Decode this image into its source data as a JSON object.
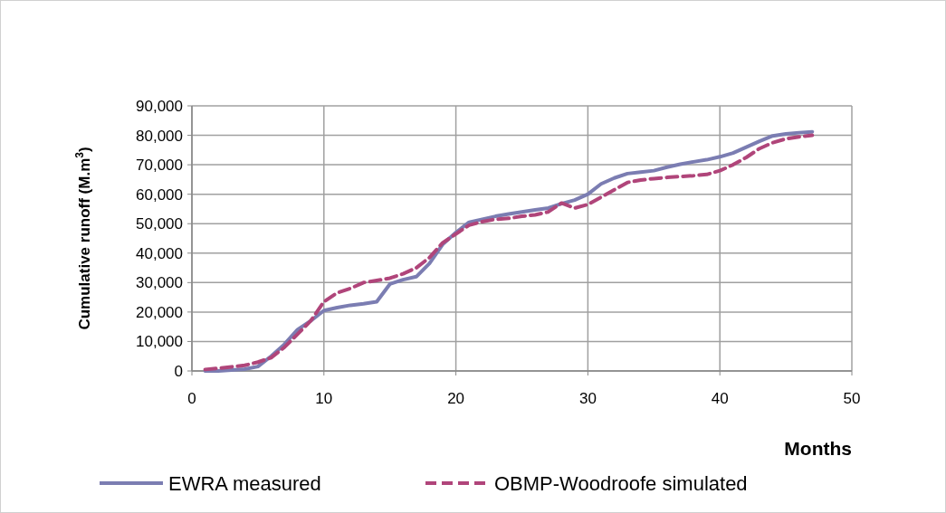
{
  "chart_data": {
    "type": "line",
    "xlabel": "Months",
    "ylabel": "Cumulative runoff (M.m$^{3}$)",
    "x": [
      1,
      2,
      3,
      4,
      5,
      6,
      7,
      8,
      9,
      10,
      11,
      12,
      13,
      14,
      15,
      16,
      17,
      18,
      19,
      20,
      21,
      22,
      23,
      24,
      25,
      26,
      27,
      28,
      29,
      30,
      31,
      32,
      33,
      34,
      35,
      36,
      37,
      38,
      39,
      40,
      41,
      42,
      43,
      44,
      45,
      46,
      47
    ],
    "series": [
      {
        "name": "EWRA measured",
        "color": "#7b7db2",
        "line_style": "solid",
        "values": [
          0,
          0,
          300,
          600,
          1500,
          5000,
          9000,
          14000,
          17000,
          20500,
          21500,
          22300,
          22800,
          23500,
          29500,
          31000,
          32000,
          36500,
          43000,
          47000,
          50500,
          51500,
          52500,
          53300,
          54000,
          54700,
          55300,
          56800,
          58000,
          60000,
          63500,
          65500,
          67000,
          67500,
          68000,
          69200,
          70200,
          71000,
          71700,
          72700,
          74000,
          76000,
          78000,
          79800,
          80500,
          80900,
          81200
        ]
      },
      {
        "name": "OBMP-Woodroofe simulated",
        "color": "#b0457a",
        "line_style": "dashed",
        "values": [
          500,
          900,
          1400,
          1900,
          3000,
          4500,
          8000,
          12500,
          17000,
          23500,
          26500,
          28000,
          30000,
          30700,
          31500,
          33000,
          35000,
          38500,
          43500,
          46500,
          49500,
          50700,
          51500,
          51800,
          52500,
          53000,
          54000,
          57000,
          55300,
          56500,
          59000,
          61500,
          64000,
          64800,
          65300,
          65700,
          66000,
          66300,
          66700,
          68000,
          70000,
          72500,
          75500,
          77500,
          78800,
          79500,
          80000
        ]
      }
    ],
    "xlim": [
      0,
      50
    ],
    "xticks": [
      0,
      10,
      20,
      30,
      40,
      50
    ],
    "ylim": [
      0,
      90000
    ],
    "yticks": [
      {
        "value": 0,
        "label": "0"
      },
      {
        "value": 10000,
        "label": "10,000"
      },
      {
        "value": 20000,
        "label": "20,000"
      },
      {
        "value": 30000,
        "label": "30,000"
      },
      {
        "value": 40000,
        "label": "40,000"
      },
      {
        "value": 50000,
        "label": "50,000"
      },
      {
        "value": 60000,
        "label": "60,000"
      },
      {
        "value": 70000,
        "label": "70,000"
      },
      {
        "value": 80000,
        "label": "80,000"
      },
      {
        "value": 90000,
        "label": "90,000"
      }
    ],
    "grid": true,
    "legend": "bottom"
  }
}
